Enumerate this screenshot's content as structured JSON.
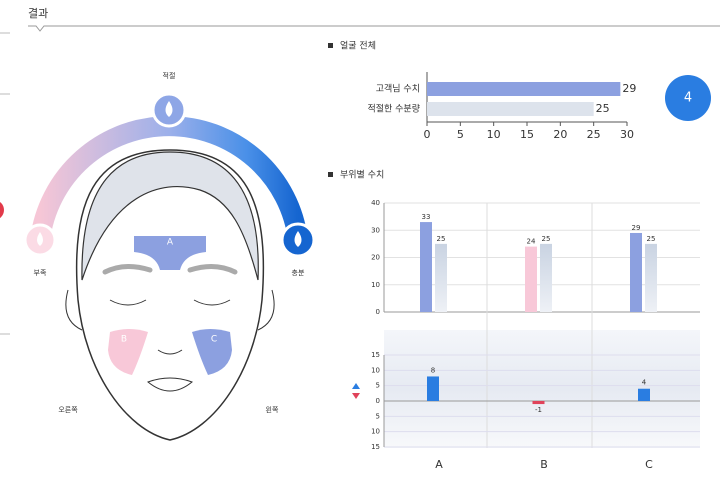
{
  "header": {
    "title": "결과"
  },
  "gauge": {
    "low": "부족",
    "mid": "적절",
    "high": "충분"
  },
  "face": {
    "zones": [
      "A",
      "B",
      "C"
    ],
    "right": "오른쪽",
    "left": "왼쪽"
  },
  "chart_data": [
    {
      "type": "bar",
      "orientation": "horizontal",
      "title": "얼굴 전체",
      "categories": [
        "고객님 수치",
        "적절한 수분량"
      ],
      "values": [
        29,
        25
      ],
      "colors": [
        "#8ca0e0",
        "#dde3ec"
      ],
      "xlim": [
        0,
        30
      ],
      "xticks": [
        0,
        5,
        10,
        15,
        20,
        25,
        30
      ],
      "annotation": "4"
    },
    {
      "type": "bar",
      "title": "부위별 수치",
      "categories": [
        "A",
        "B",
        "C"
      ],
      "series": [
        {
          "values": [
            33,
            24,
            29
          ],
          "colors": [
            "#8ca0e0",
            "#f8c8d8",
            "#8ca0e0"
          ]
        },
        {
          "values": [
            25,
            25,
            25
          ],
          "color": "#d6dde8"
        }
      ],
      "ylim": [
        0,
        40
      ],
      "yticks": [
        0,
        10,
        20,
        30,
        40
      ],
      "grid": true
    },
    {
      "type": "bar",
      "values": [
        8,
        -1,
        4
      ],
      "color": "#2a7de1",
      "negative_color": "#e0435a",
      "ylim": [
        -15,
        15
      ],
      "yticks": [
        {
          "value": -15,
          "label": "15"
        },
        {
          "value": -10,
          "label": "10"
        },
        {
          "value": -5,
          "label": "5"
        },
        0,
        5,
        10,
        15
      ],
      "grid": true
    }
  ]
}
